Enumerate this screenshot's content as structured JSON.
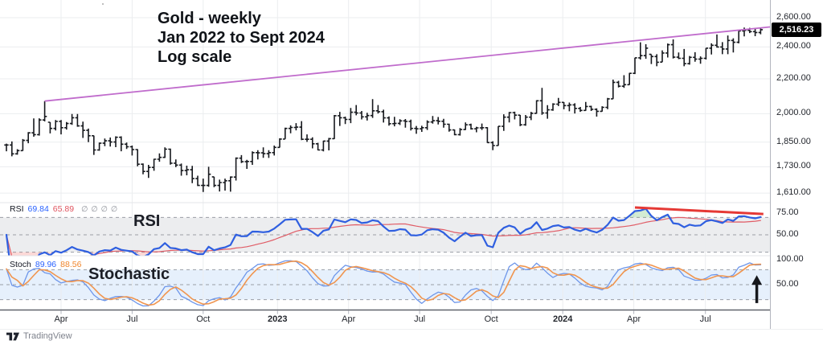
{
  "title": {
    "line1": "Gold - weekly",
    "line2": "Jan 2022 to Sept 2024",
    "line3": "Log scale"
  },
  "annotations": {
    "rsi": "RSI",
    "stochastic": "Stochastic"
  },
  "panes": {
    "rsi": {
      "name": "RSI",
      "value_main": "69.84",
      "value_ma": "65.89",
      "icons": [
        "∅",
        "∅",
        "∅",
        "∅"
      ]
    },
    "stoch": {
      "name": "Stoch",
      "value_k": "89.96",
      "value_d": "88.56"
    }
  },
  "price_axis": {
    "last_price_label": "2,516.23",
    "labels": [
      {
        "text": "2,600.00",
        "price": 2600
      },
      {
        "text": "2,400.00",
        "price": 2400
      },
      {
        "text": "2,200.00",
        "price": 2200
      },
      {
        "text": "2,000.00",
        "price": 2000
      },
      {
        "text": "1,850.00",
        "price": 1850
      },
      {
        "text": "1,730.00",
        "price": 1730
      },
      {
        "text": "1,610.00",
        "price": 1610
      }
    ]
  },
  "rsi_axis": {
    "labels": [
      {
        "text": "75.00",
        "value": 75
      },
      {
        "text": "50.00",
        "value": 50
      }
    ]
  },
  "stoch_axis": {
    "labels": [
      {
        "text": "100.00",
        "value": 100
      },
      {
        "text": "50.00",
        "value": 50
      }
    ]
  },
  "time_axis": {
    "labels": [
      {
        "text": "Apr",
        "week": 10,
        "bold": false
      },
      {
        "text": "Jul",
        "week": 23,
        "bold": false
      },
      {
        "text": "Oct",
        "week": 36,
        "bold": false
      },
      {
        "text": "2023",
        "week": 49.6,
        "bold": true
      },
      {
        "text": "Apr",
        "week": 62.6,
        "bold": false
      },
      {
        "text": "Jul",
        "week": 75.6,
        "bold": false
      },
      {
        "text": "Oct",
        "week": 88.7,
        "bold": false
      },
      {
        "text": "2024",
        "week": 101.8,
        "bold": true
      },
      {
        "text": "Apr",
        "week": 114.8,
        "bold": false
      },
      {
        "text": "Jul",
        "week": 127.9,
        "bold": false
      }
    ]
  },
  "footer": {
    "brand": "TradingView"
  },
  "colors": {
    "background": "#ffffff",
    "grid": "#ebedef",
    "bars": "#16181d",
    "trendline": "#c06ccc",
    "rsi_line": "#2f5fe0",
    "rsi_ma": "#e05c66",
    "rsi_trend": "#e53935",
    "rsi_band": "rgba(120,125,140,0.14)",
    "rsi_ob_fill": "rgba(76,175,80,0.25)",
    "rsi_os_fill": "rgba(244,67,54,0.2)",
    "stoch_k": "#6d96ea",
    "stoch_d": "#f0954f",
    "stoch_band": "rgba(100,160,235,0.16)",
    "dashed": "#9b9ea6",
    "sep": "#e3e5e8",
    "sep_dark": "#60636b",
    "sep_faint": "#eef0f2",
    "axis_sep": "#b2b5be",
    "arrow": "#16181d",
    "badge_bg": "#000000",
    "badge_text": "#ffffff",
    "accent_blue": "#2962ff",
    "accent_red": "#e05560",
    "accent_orange": "#f0862d"
  },
  "chart_data": {
    "type": "ohlc-with-indicators",
    "note": "Gold weekly OHLC bars, Jan 2022 to Sept 2024, logarithmic price scale",
    "price": {
      "type": "ohlc_bars",
      "frequency": "weekly",
      "scale": "log",
      "ylim": [
        1570,
        2650
      ],
      "last_close": 2516.23,
      "trendline": {
        "from_week": 7,
        "from_price": 2070,
        "to_week": 139.7,
        "to_price": 2535
      },
      "bars_hlc": [
        [
          1843,
          1805,
          1836
        ],
        [
          1854,
          1780,
          1792
        ],
        [
          1815,
          1788,
          1808
        ],
        [
          1866,
          1807,
          1859
        ],
        [
          1902,
          1845,
          1898
        ],
        [
          1974,
          1878,
          1889
        ],
        [
          1975,
          1884,
          1966
        ],
        [
          2070,
          1958,
          1985
        ],
        [
          1954,
          1895,
          1921
        ],
        [
          1966,
          1910,
          1958
        ],
        [
          1966,
          1890,
          1925
        ],
        [
          1955,
          1915,
          1947
        ],
        [
          1998,
          1940,
          1978
        ],
        [
          1998,
          1930,
          1934
        ],
        [
          1957,
          1872,
          1911
        ],
        [
          1920,
          1850,
          1883
        ],
        [
          1884,
          1787,
          1811
        ],
        [
          1848,
          1807,
          1845
        ],
        [
          1869,
          1830,
          1857
        ],
        [
          1874,
          1828,
          1851
        ],
        [
          1880,
          1825,
          1875
        ],
        [
          1880,
          1805,
          1840
        ],
        [
          1848,
          1816,
          1827
        ],
        [
          1833,
          1784,
          1813
        ],
        [
          1815,
          1732,
          1742
        ],
        [
          1746,
          1695,
          1708
        ],
        [
          1739,
          1678,
          1727
        ],
        [
          1768,
          1711,
          1766
        ],
        [
          1794,
          1754,
          1775
        ],
        [
          1824,
          1772,
          1815
        ],
        [
          1818,
          1740,
          1747
        ],
        [
          1765,
          1728,
          1738
        ],
        [
          1745,
          1688,
          1712
        ],
        [
          1735,
          1690,
          1716
        ],
        [
          1734,
          1654,
          1675
        ],
        [
          1688,
          1641,
          1644
        ],
        [
          1675,
          1615,
          1644
        ],
        [
          1730,
          1638,
          1695
        ],
        [
          1683,
          1636,
          1644
        ],
        [
          1670,
          1617,
          1657
        ],
        [
          1675,
          1621,
          1665
        ],
        [
          1685,
          1616,
          1682
        ],
        [
          1775,
          1666,
          1771
        ],
        [
          1786,
          1748,
          1754
        ],
        [
          1763,
          1720,
          1755
        ],
        [
          1804,
          1739,
          1798
        ],
        [
          1810,
          1765,
          1797
        ],
        [
          1824,
          1773,
          1793
        ],
        [
          1810,
          1772,
          1798
        ],
        [
          1833,
          1784,
          1824
        ],
        [
          1870,
          1823,
          1866
        ],
        [
          1925,
          1866,
          1921
        ],
        [
          1937,
          1896,
          1926
        ],
        [
          1949,
          1911,
          1928
        ],
        [
          1960,
          1861,
          1865
        ],
        [
          1890,
          1852,
          1865
        ],
        [
          1875,
          1819,
          1842
        ],
        [
          1847,
          1809,
          1811
        ],
        [
          1858,
          1804,
          1856
        ],
        [
          1872,
          1809,
          1868
        ],
        [
          1993,
          1866,
          1989
        ],
        [
          2010,
          1934,
          1978
        ],
        [
          1984,
          1944,
          1969
        ],
        [
          2032,
          1949,
          2008
        ],
        [
          2048,
          1991,
          2004
        ],
        [
          2015,
          1969,
          1983
        ],
        [
          2005,
          1963,
          1990
        ],
        [
          2081,
          1977,
          2016
        ],
        [
          2048,
          2001,
          2011
        ],
        [
          2022,
          1952,
          1977
        ],
        [
          1985,
          1936,
          1946
        ],
        [
          1983,
          1932,
          1948
        ],
        [
          1970,
          1939,
          1961
        ],
        [
          1971,
          1925,
          1958
        ],
        [
          1968,
          1910,
          1921
        ],
        [
          1934,
          1893,
          1919
        ],
        [
          1935,
          1903,
          1925
        ],
        [
          1964,
          1913,
          1955
        ],
        [
          1987,
          1946,
          1962
        ],
        [
          1982,
          1942,
          1959
        ],
        [
          1972,
          1925,
          1943
        ],
        [
          1946,
          1904,
          1913
        ],
        [
          1915,
          1885,
          1889
        ],
        [
          1923,
          1884,
          1915
        ],
        [
          1953,
          1913,
          1940
        ],
        [
          1946,
          1915,
          1919
        ],
        [
          1930,
          1901,
          1924
        ],
        [
          1947,
          1913,
          1925
        ],
        [
          1928,
          1846,
          1848
        ],
        [
          1855,
          1810,
          1833
        ],
        [
          1933,
          1832,
          1932
        ],
        [
          1997,
          1908,
          1981
        ],
        [
          2009,
          1953,
          2006
        ],
        [
          2011,
          1969,
          1992
        ],
        [
          1993,
          1933,
          1940
        ],
        [
          1993,
          1935,
          1981
        ],
        [
          2010,
          1965,
          2002
        ],
        [
          2075,
          2000,
          2072
        ],
        [
          2146,
          1994,
          2004
        ],
        [
          2047,
          1973,
          2021
        ],
        [
          2058,
          2016,
          2053
        ],
        [
          2088,
          2042,
          2063
        ],
        [
          2064,
          2024,
          2045
        ],
        [
          2062,
          2013,
          2049
        ],
        [
          2058,
          2001,
          2029
        ],
        [
          2037,
          2010,
          2018
        ],
        [
          2065,
          2016,
          2040
        ],
        [
          2044,
          2015,
          2024
        ],
        [
          2029,
          1984,
          2013
        ],
        [
          2041,
          2012,
          2035
        ],
        [
          2088,
          2025,
          2083
        ],
        [
          2195,
          2082,
          2179
        ],
        [
          2188,
          2149,
          2156
        ],
        [
          2222,
          2146,
          2165
        ],
        [
          2236,
          2164,
          2233
        ],
        [
          2331,
          2229,
          2330
        ],
        [
          2431,
          2319,
          2344
        ],
        [
          2418,
          2324,
          2392
        ],
        [
          2352,
          2291,
          2338
        ],
        [
          2353,
          2277,
          2302
        ],
        [
          2378,
          2303,
          2361
        ],
        [
          2423,
          2332,
          2415
        ],
        [
          2450,
          2326,
          2334
        ],
        [
          2364,
          2322,
          2327
        ],
        [
          2387,
          2277,
          2293
        ],
        [
          2342,
          2287,
          2333
        ],
        [
          2366,
          2305,
          2322
        ],
        [
          2339,
          2293,
          2327
        ],
        [
          2393,
          2319,
          2392
        ],
        [
          2424,
          2351,
          2411
        ],
        [
          2483,
          2396,
          2400
        ],
        [
          2432,
          2353,
          2387
        ],
        [
          2477,
          2353,
          2443
        ],
        [
          2458,
          2364,
          2431
        ],
        [
          2509,
          2424,
          2508
        ],
        [
          2531,
          2470,
          2512
        ],
        [
          2529,
          2493,
          2503
        ],
        [
          2529,
          2472,
          2497
        ],
        [
          2530,
          2485,
          2516.23
        ]
      ]
    },
    "rsi": {
      "type": "line",
      "period": 14,
      "ma_period": 14,
      "levels": [
        70,
        50,
        30
      ],
      "current": 69.84,
      "current_ma": 65.89,
      "trendline": {
        "from_week": 115,
        "from_value": 81.5,
        "to_week": 138.5,
        "to_value": 74
      }
    },
    "stoch": {
      "type": "line",
      "k_period": 14,
      "k_smooth": 3,
      "d_smooth": 3,
      "levels": [
        80,
        50,
        20
      ],
      "current_k": 89.96,
      "current_d": 88.56,
      "arrow": {
        "week": 137.3,
        "from_value": 13,
        "to_value": 53,
        "tip_value": 69
      }
    }
  }
}
